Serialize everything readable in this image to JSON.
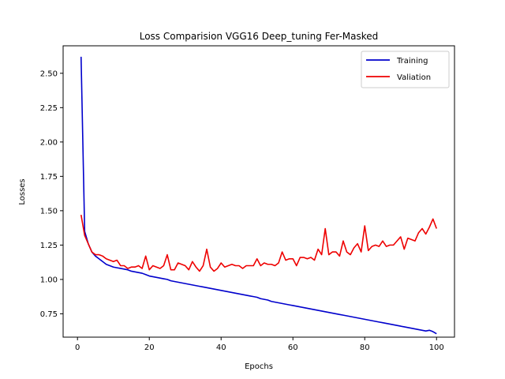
{
  "chart_data": {
    "type": "line",
    "title": "Loss Comparision VGG16 Deep_tuning Fer-Masked",
    "xlabel": "Epochs",
    "ylabel": "Losses",
    "xlim": [
      -4,
      105
    ],
    "ylim": [
      0.58,
      2.7
    ],
    "xticks": [
      0,
      20,
      40,
      60,
      80,
      100
    ],
    "yticks": [
      0.75,
      1.0,
      1.25,
      1.5,
      1.75,
      2.0,
      2.25,
      2.5
    ],
    "grid": false,
    "legend_position": "top-right",
    "x": [
      1,
      2,
      3,
      4,
      5,
      6,
      7,
      8,
      9,
      10,
      11,
      12,
      13,
      14,
      15,
      16,
      17,
      18,
      19,
      20,
      21,
      22,
      23,
      24,
      25,
      26,
      27,
      28,
      29,
      30,
      31,
      32,
      33,
      34,
      35,
      36,
      37,
      38,
      39,
      40,
      41,
      42,
      43,
      44,
      45,
      46,
      47,
      48,
      49,
      50,
      51,
      52,
      53,
      54,
      55,
      56,
      57,
      58,
      59,
      60,
      61,
      62,
      63,
      64,
      65,
      66,
      67,
      68,
      69,
      70,
      71,
      72,
      73,
      74,
      75,
      76,
      77,
      78,
      79,
      80,
      81,
      82,
      83,
      84,
      85,
      86,
      87,
      88,
      89,
      90,
      91,
      92,
      93,
      94,
      95,
      96,
      97,
      98,
      99,
      100
    ],
    "series": [
      {
        "name": "Training",
        "color": "#0000cc",
        "values": [
          2.62,
          1.35,
          1.26,
          1.2,
          1.17,
          1.15,
          1.13,
          1.11,
          1.1,
          1.09,
          1.085,
          1.08,
          1.075,
          1.07,
          1.06,
          1.055,
          1.05,
          1.045,
          1.035,
          1.025,
          1.02,
          1.015,
          1.01,
          1.005,
          1.0,
          0.99,
          0.985,
          0.98,
          0.975,
          0.97,
          0.965,
          0.96,
          0.955,
          0.95,
          0.945,
          0.94,
          0.935,
          0.93,
          0.925,
          0.92,
          0.915,
          0.91,
          0.905,
          0.9,
          0.895,
          0.89,
          0.885,
          0.88,
          0.875,
          0.87,
          0.86,
          0.855,
          0.85,
          0.84,
          0.835,
          0.83,
          0.825,
          0.82,
          0.815,
          0.81,
          0.805,
          0.8,
          0.795,
          0.79,
          0.785,
          0.78,
          0.775,
          0.77,
          0.765,
          0.76,
          0.755,
          0.75,
          0.745,
          0.74,
          0.735,
          0.73,
          0.725,
          0.72,
          0.715,
          0.71,
          0.705,
          0.7,
          0.695,
          0.69,
          0.685,
          0.68,
          0.675,
          0.67,
          0.665,
          0.66,
          0.655,
          0.65,
          0.645,
          0.64,
          0.635,
          0.63,
          0.625,
          0.63,
          0.62,
          0.605
        ]
      },
      {
        "name": "Valiation",
        "color": "#ee0000",
        "values": [
          1.47,
          1.32,
          1.26,
          1.2,
          1.18,
          1.18,
          1.17,
          1.15,
          1.14,
          1.13,
          1.14,
          1.1,
          1.1,
          1.08,
          1.09,
          1.09,
          1.1,
          1.08,
          1.17,
          1.07,
          1.1,
          1.09,
          1.08,
          1.1,
          1.18,
          1.07,
          1.07,
          1.12,
          1.11,
          1.1,
          1.07,
          1.13,
          1.09,
          1.06,
          1.1,
          1.22,
          1.09,
          1.06,
          1.08,
          1.12,
          1.09,
          1.1,
          1.11,
          1.1,
          1.1,
          1.08,
          1.1,
          1.1,
          1.1,
          1.15,
          1.1,
          1.12,
          1.11,
          1.11,
          1.1,
          1.12,
          1.2,
          1.14,
          1.15,
          1.15,
          1.1,
          1.16,
          1.16,
          1.15,
          1.16,
          1.14,
          1.22,
          1.18,
          1.37,
          1.18,
          1.2,
          1.2,
          1.17,
          1.28,
          1.2,
          1.18,
          1.23,
          1.26,
          1.2,
          1.39,
          1.21,
          1.24,
          1.25,
          1.24,
          1.28,
          1.24,
          1.25,
          1.25,
          1.28,
          1.31,
          1.22,
          1.3,
          1.29,
          1.28,
          1.34,
          1.37,
          1.33,
          1.38,
          1.44,
          1.37
        ]
      }
    ]
  }
}
